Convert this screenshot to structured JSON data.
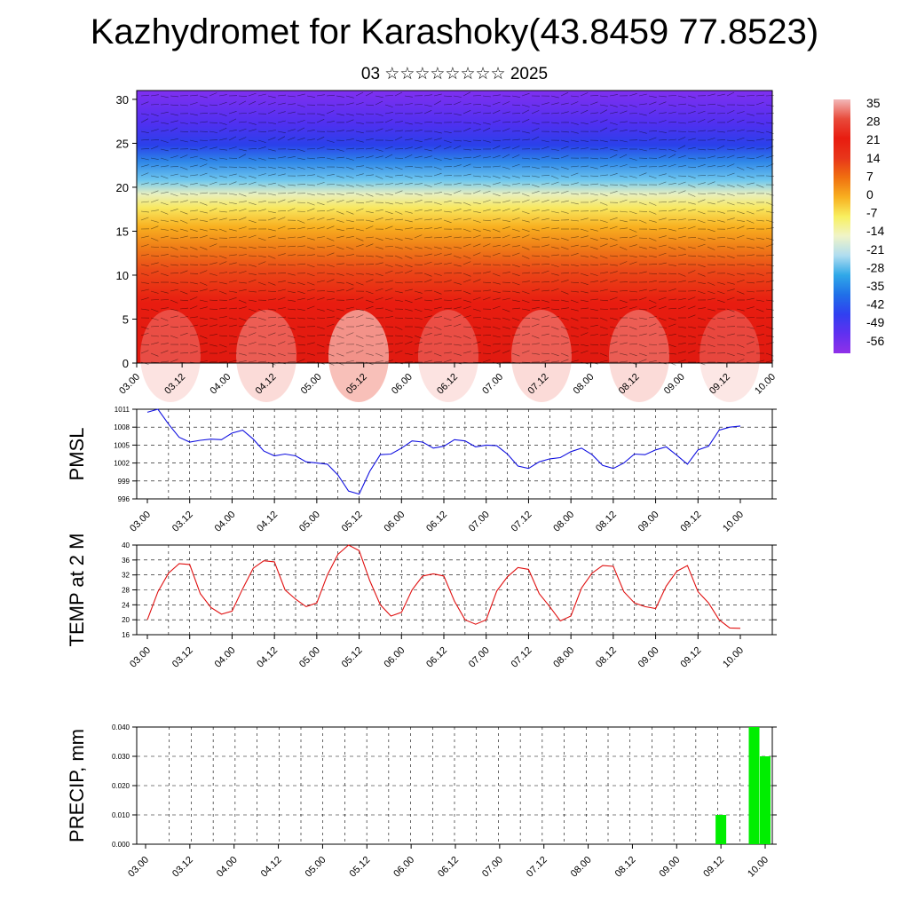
{
  "page": {
    "title": "Kazhydromet for Karashoky(43.8459 77.8523)",
    "subtitle": "03 ☆☆☆☆☆☆☆☆ 2025"
  },
  "chart_data": [
    {
      "type": "heatmap",
      "name": "cross-section",
      "x_ticks": [
        "03.00",
        "03.12",
        "04.00",
        "04.12",
        "05.00",
        "05.12",
        "06.00",
        "06.12",
        "07.00",
        "07.12",
        "08.00",
        "08.12",
        "09.00",
        "09.12",
        "10.00"
      ],
      "y_ticks": [
        0,
        5,
        10,
        15,
        20,
        25,
        30
      ],
      "ylim": [
        0,
        31
      ],
      "colorbar": {
        "labels": [
          35,
          28,
          21,
          14,
          7,
          0,
          -7,
          -14,
          -21,
          -28,
          -35,
          -42,
          -49,
          -56
        ],
        "colors": [
          "#f2b8b8",
          "#e84a3a",
          "#e81c10",
          "#e8361a",
          "#f07010",
          "#f8b020",
          "#f8f060",
          "#f0f4c8",
          "#b0ddf0",
          "#30a8e8",
          "#2070e8",
          "#3040f0",
          "#6030f0",
          "#9030e8"
        ]
      },
      "note_barbs": "wind barbs overlaid"
    },
    {
      "type": "line",
      "name": "pmsl",
      "ylabel": "PMSL",
      "yticks": [
        996,
        999,
        1002,
        1005,
        1008,
        1011
      ],
      "ylim": [
        996,
        1011
      ],
      "color": "#1010e0",
      "x_ticks": [
        "03.00",
        "03.12",
        "04.00",
        "04.12",
        "05.00",
        "05.12",
        "06.00",
        "06.12",
        "07.00",
        "07.12",
        "08.00",
        "08.12",
        "09.00",
        "09.12",
        "10.00"
      ],
      "values": [
        1010.5,
        1011,
        1008.5,
        1006.3,
        1005.5,
        1005.8,
        1006,
        1005.9,
        1007,
        1007.5,
        1006,
        1004,
        1003.2,
        1003.5,
        1003.2,
        1002.2,
        1002,
        1001.8,
        1000,
        997.3,
        996.8,
        1000.6,
        1003.4,
        1003.5,
        1004.5,
        1005.7,
        1005.5,
        1004.5,
        1004.8,
        1005.9,
        1005.7,
        1004.7,
        1005,
        1004.9,
        1003.5,
        1001.5,
        1001.1,
        1002.2,
        1002.7,
        1002.9,
        1003.9,
        1004.5,
        1003.4,
        1001.6,
        1001.1,
        1002,
        1003.5,
        1003.4,
        1004.2,
        1004.7,
        1003.3,
        1001.8,
        1004.2,
        1004.8,
        1007.5,
        1008,
        1008.2
      ]
    },
    {
      "type": "line",
      "name": "temp",
      "ylabel": "TEMP at 2 M",
      "yticks": [
        16,
        20,
        24,
        28,
        32,
        36,
        40
      ],
      "ylim": [
        16,
        40
      ],
      "color": "#e01010",
      "x_ticks": [
        "03.00",
        "03.12",
        "04.00",
        "04.12",
        "05.00",
        "05.12",
        "06.00",
        "06.12",
        "07.00",
        "07.12",
        "08.00",
        "08.12",
        "09.00",
        "09.12",
        "10.00"
      ],
      "values": [
        20,
        27.5,
        32.5,
        35,
        34.8,
        27,
        23.3,
        21.5,
        22.3,
        28.3,
        33.8,
        35.8,
        35.5,
        28,
        25.5,
        23.5,
        24.5,
        32,
        37.5,
        40,
        38.5,
        30.5,
        24,
        21,
        22,
        28,
        31.7,
        32.3,
        31.7,
        25,
        20,
        18.8,
        20,
        27.7,
        31.5,
        34,
        33.5,
        27,
        23.5,
        19.7,
        21,
        28.5,
        32.5,
        34.5,
        34.3,
        27.5,
        24.5,
        23.5,
        23,
        29,
        33,
        34.5,
        27.5,
        24.5,
        20,
        17.8,
        17.7
      ]
    },
    {
      "type": "bar",
      "name": "precip",
      "ylabel": "PRECIP, mm",
      "yticks": [
        "0.000",
        "0.010",
        "0.020",
        "0.030",
        "0.040"
      ],
      "ylim": [
        0,
        0.04
      ],
      "color": "#00ee00",
      "x_ticks": [
        "03.00",
        "03.12",
        "04.00",
        "04.12",
        "05.00",
        "05.12",
        "06.00",
        "06.12",
        "07.00",
        "07.12",
        "08.00",
        "08.12",
        "09.00",
        "09.12",
        "10.00"
      ],
      "bars": [
        {
          "x_hours": 156,
          "value": 0.01
        },
        {
          "x_hours": 165,
          "value": 0.04
        },
        {
          "x_hours": 168,
          "value": 0.03
        }
      ]
    }
  ]
}
